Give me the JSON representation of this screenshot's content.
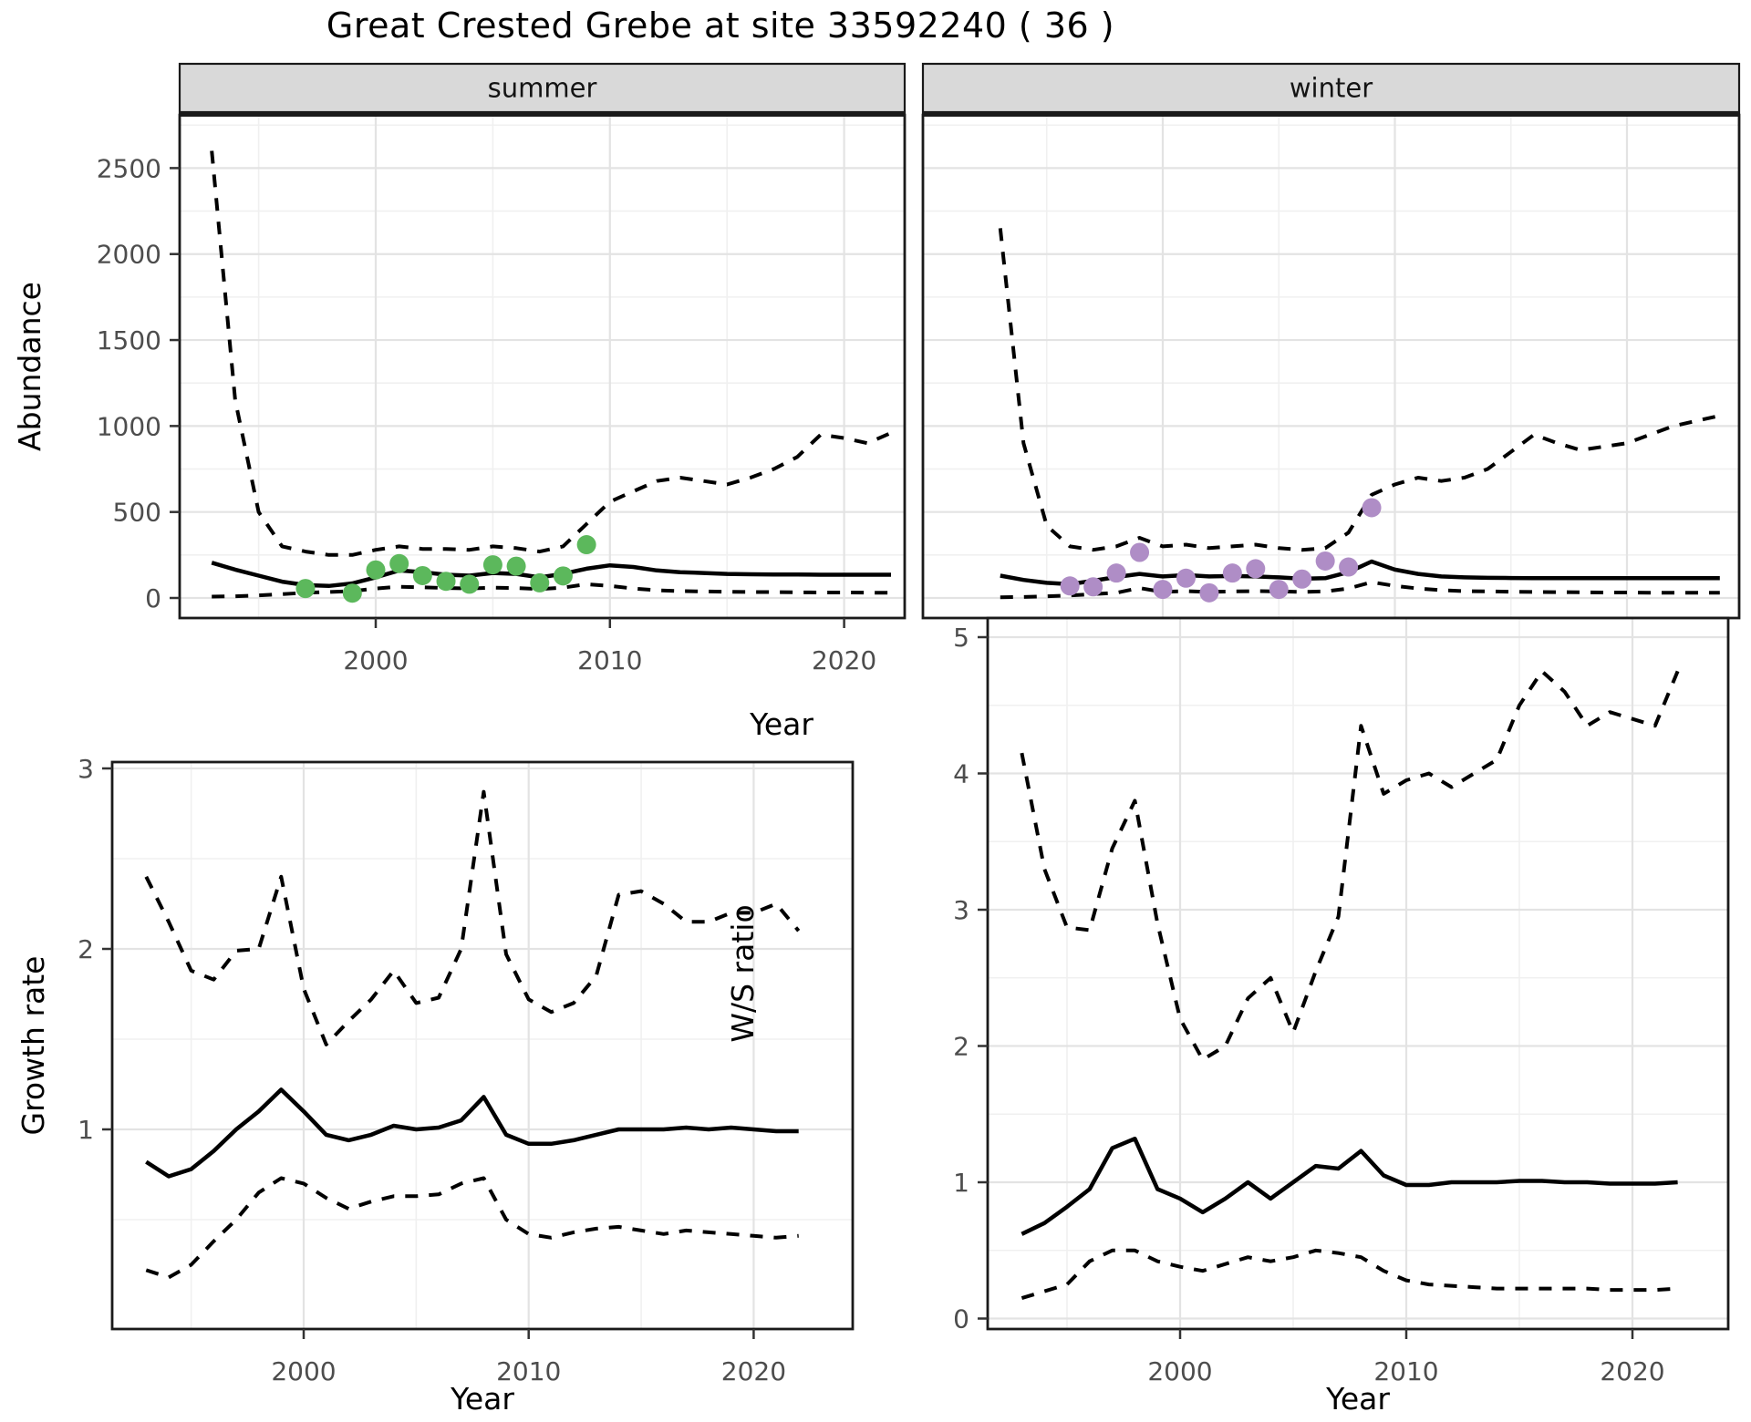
{
  "title": "Great Crested Grebe at site 33592240 ( 36 )",
  "colors": {
    "summer_points": "#5CB85C",
    "winter_points": "#AF8DC6",
    "line": "#000000",
    "strip_fill": "#D9D9D9",
    "panel_border": "#1A1A1A",
    "grid_major": "#E3E3E3",
    "grid_minor": "#F0F0F0",
    "tick_text": "#4d4d4d"
  },
  "axis_titles": {
    "abundance": "Abundance",
    "year_top": "Year",
    "growth": "Growth rate",
    "ws": "W/S ratio",
    "year_bottom_left": "Year",
    "year_bottom_right": "Year"
  },
  "chart_data": [
    {
      "type": "line",
      "panel": "abundance-summer",
      "strip_label": "summer",
      "ylabel": "Abundance",
      "xlabel": "Year",
      "x_ticks": [
        2000,
        2010,
        2020
      ],
      "y_ticks": [
        0,
        500,
        1000,
        1500,
        2000,
        2500
      ],
      "ylim": [
        0,
        2800
      ],
      "grid": true,
      "legend": "none",
      "years": [
        1993,
        1994,
        1995,
        1996,
        1997,
        1998,
        1999,
        2000,
        2001,
        2002,
        2003,
        2004,
        2005,
        2006,
        2007,
        2008,
        2009,
        2010,
        2011,
        2012,
        2013,
        2014,
        2015,
        2016,
        2017,
        2018,
        2019,
        2020,
        2021,
        2022
      ],
      "series": [
        {
          "name": "estimate",
          "style": "solid",
          "values": [
            205,
            165,
            130,
            95,
            75,
            70,
            85,
            120,
            160,
            150,
            135,
            130,
            145,
            140,
            120,
            140,
            170,
            190,
            180,
            160,
            150,
            145,
            140,
            138,
            137,
            136,
            135,
            135,
            135,
            135
          ]
        },
        {
          "name": "lower95CI",
          "style": "dashed",
          "values": [
            8,
            10,
            15,
            22,
            30,
            35,
            40,
            55,
            65,
            62,
            58,
            55,
            60,
            58,
            52,
            60,
            80,
            70,
            55,
            45,
            40,
            38,
            36,
            35,
            34,
            33,
            32,
            32,
            31,
            30
          ]
        },
        {
          "name": "upper95CI",
          "style": "dashed",
          "values": [
            2600,
            1150,
            500,
            300,
            270,
            250,
            250,
            280,
            300,
            285,
            285,
            280,
            300,
            290,
            270,
            300,
            430,
            560,
            620,
            680,
            700,
            680,
            660,
            700,
            750,
            820,
            950,
            930,
            900,
            960
          ]
        }
      ],
      "observations": [
        [
          1997,
          55
        ],
        [
          1999,
          28
        ],
        [
          2000,
          163
        ],
        [
          2001,
          200
        ],
        [
          2002,
          130
        ],
        [
          2003,
          97
        ],
        [
          2004,
          80
        ],
        [
          2005,
          193
        ],
        [
          2006,
          185
        ],
        [
          2007,
          88
        ],
        [
          2008,
          128
        ],
        [
          2009,
          310
        ]
      ]
    },
    {
      "type": "line",
      "panel": "abundance-winter",
      "strip_label": "winter",
      "ylabel": "Abundance",
      "xlabel": "Year",
      "x_ticks": [
        2000,
        2010,
        2020
      ],
      "y_ticks": [
        0,
        500,
        1000,
        1500,
        2000,
        2500
      ],
      "ylim": [
        0,
        2800
      ],
      "grid": true,
      "legend": "none",
      "years": [
        1993,
        1994,
        1995,
        1996,
        1997,
        1998,
        1999,
        2000,
        2001,
        2002,
        2003,
        2004,
        2005,
        2006,
        2007,
        2008,
        2009,
        2010,
        2011,
        2012,
        2013,
        2014,
        2015,
        2016,
        2017,
        2018,
        2019,
        2020,
        2021,
        2022,
        2023,
        2024
      ],
      "series": [
        {
          "name": "estimate",
          "style": "solid",
          "values": [
            130,
            105,
            88,
            80,
            100,
            122,
            140,
            125,
            133,
            125,
            128,
            125,
            120,
            112,
            115,
            150,
            212,
            165,
            140,
            125,
            120,
            117,
            116,
            115,
            115,
            115,
            115,
            115,
            115,
            115,
            115,
            115
          ]
        },
        {
          "name": "lower95CI",
          "style": "dashed",
          "values": [
            4,
            6,
            10,
            15,
            22,
            30,
            58,
            35,
            40,
            35,
            38,
            40,
            38,
            35,
            38,
            55,
            92,
            70,
            55,
            45,
            40,
            38,
            36,
            35,
            34,
            33,
            32,
            32,
            31,
            30,
            30,
            30
          ]
        },
        {
          "name": "upper95CI",
          "style": "dashed",
          "values": [
            2150,
            900,
            420,
            300,
            280,
            300,
            350,
            300,
            310,
            290,
            300,
            310,
            290,
            280,
            290,
            380,
            600,
            660,
            700,
            680,
            700,
            750,
            850,
            950,
            900,
            860,
            880,
            900,
            950,
            1000,
            1030,
            1060
          ]
        }
      ],
      "observations": [
        [
          1996,
          70
        ],
        [
          1997,
          65
        ],
        [
          1998,
          145
        ],
        [
          1999,
          265
        ],
        [
          2000,
          50
        ],
        [
          2001,
          115
        ],
        [
          2002,
          30
        ],
        [
          2003,
          145
        ],
        [
          2004,
          170
        ],
        [
          2005,
          50
        ],
        [
          2006,
          110
        ],
        [
          2007,
          215
        ],
        [
          2008,
          180
        ],
        [
          2009,
          525
        ]
      ]
    },
    {
      "type": "line",
      "panel": "growth-rate",
      "strip_label": "",
      "ylabel": "Growth rate",
      "xlabel": "Year",
      "x_ticks": [
        2000,
        2010,
        2020
      ],
      "y_ticks": [
        1,
        2,
        3
      ],
      "ylim": [
        0,
        3
      ],
      "grid": true,
      "legend": "none",
      "years": [
        1993,
        1994,
        1995,
        1996,
        1997,
        1998,
        1999,
        2000,
        2001,
        2002,
        2003,
        2004,
        2005,
        2006,
        2007,
        2008,
        2009,
        2010,
        2011,
        2012,
        2013,
        2014,
        2015,
        2016,
        2017,
        2018,
        2019,
        2020,
        2021,
        2022
      ],
      "series": [
        {
          "name": "estimate",
          "style": "solid",
          "values": [
            0.82,
            0.74,
            0.78,
            0.88,
            1.0,
            1.1,
            1.22,
            1.1,
            0.97,
            0.94,
            0.97,
            1.02,
            1.0,
            1.01,
            1.05,
            1.18,
            0.97,
            0.92,
            0.92,
            0.94,
            0.97,
            1.0,
            1.0,
            1.0,
            1.01,
            1.0,
            1.01,
            1.0,
            0.99,
            0.99
          ]
        },
        {
          "name": "lower95CI",
          "style": "dashed",
          "values": [
            0.22,
            0.18,
            0.25,
            0.38,
            0.5,
            0.65,
            0.73,
            0.7,
            0.62,
            0.56,
            0.6,
            0.63,
            0.63,
            0.64,
            0.7,
            0.73,
            0.5,
            0.42,
            0.4,
            0.43,
            0.45,
            0.46,
            0.44,
            0.42,
            0.44,
            0.43,
            0.42,
            0.41,
            0.4,
            0.41
          ]
        },
        {
          "name": "upper95CI",
          "style": "dashed",
          "values": [
            2.4,
            2.15,
            1.88,
            1.83,
            1.99,
            2.0,
            2.4,
            1.78,
            1.47,
            1.6,
            1.72,
            1.88,
            1.7,
            1.73,
            2.0,
            2.87,
            1.97,
            1.72,
            1.65,
            1.7,
            1.85,
            2.3,
            2.32,
            2.25,
            2.15,
            2.15,
            2.2,
            2.2,
            2.25,
            2.1
          ]
        }
      ],
      "observations": []
    },
    {
      "type": "line",
      "panel": "ws-ratio",
      "strip_label": "",
      "ylabel": "W/S ratio",
      "xlabel": "Year",
      "x_ticks": [
        2000,
        2010,
        2020
      ],
      "y_ticks": [
        0,
        1,
        2,
        3,
        4,
        5
      ],
      "ylim": [
        0,
        5
      ],
      "grid": true,
      "legend": "none",
      "years": [
        1993,
        1994,
        1995,
        1996,
        1997,
        1998,
        1999,
        2000,
        2001,
        2002,
        2003,
        2004,
        2005,
        2006,
        2007,
        2008,
        2009,
        2010,
        2011,
        2012,
        2013,
        2014,
        2015,
        2016,
        2017,
        2018,
        2019,
        2020,
        2021,
        2022
      ],
      "series": [
        {
          "name": "estimate",
          "style": "solid",
          "values": [
            0.62,
            0.7,
            0.82,
            0.95,
            1.25,
            1.32,
            0.95,
            0.88,
            0.78,
            0.88,
            1.0,
            0.88,
            1.0,
            1.12,
            1.1,
            1.23,
            1.05,
            0.98,
            0.98,
            1.0,
            1.0,
            1.0,
            1.01,
            1.01,
            1.0,
            1.0,
            0.99,
            0.99,
            0.99,
            1.0
          ]
        },
        {
          "name": "lower95CI",
          "style": "dashed",
          "values": [
            0.15,
            0.2,
            0.25,
            0.42,
            0.5,
            0.5,
            0.42,
            0.38,
            0.35,
            0.4,
            0.45,
            0.42,
            0.45,
            0.5,
            0.48,
            0.45,
            0.35,
            0.28,
            0.25,
            0.24,
            0.23,
            0.22,
            0.22,
            0.22,
            0.22,
            0.22,
            0.21,
            0.21,
            0.21,
            0.22
          ]
        },
        {
          "name": "upper95CI",
          "style": "dashed",
          "values": [
            4.15,
            3.3,
            2.87,
            2.85,
            3.45,
            3.8,
            2.9,
            2.2,
            1.9,
            2.0,
            2.35,
            2.5,
            2.1,
            2.55,
            2.95,
            4.35,
            3.85,
            3.95,
            4.0,
            3.9,
            4.0,
            4.1,
            4.5,
            4.75,
            4.6,
            4.35,
            4.45,
            4.4,
            4.35,
            4.75
          ]
        }
      ],
      "observations": []
    }
  ]
}
